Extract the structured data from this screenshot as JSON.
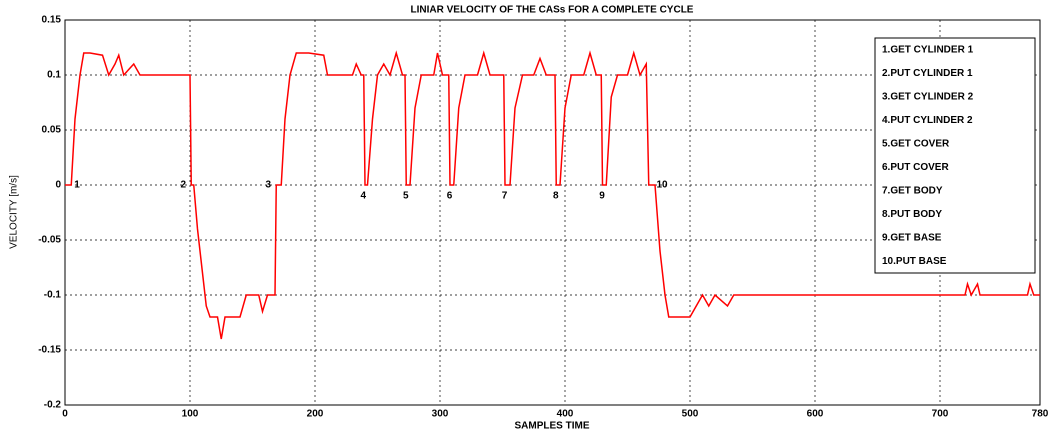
{
  "chart_data": {
    "type": "line",
    "title": "LINIAR VELOCITY OF THE CASs FOR A COMPLETE CYCLE",
    "xlabel": "SAMPLES TIME",
    "ylabel": "VELOCITY [m/s]",
    "x": [
      0,
      5,
      6,
      8,
      10,
      12,
      15,
      20,
      30,
      35,
      40,
      43,
      47,
      55,
      60,
      70,
      100,
      101,
      103,
      106,
      110,
      113,
      116,
      122,
      125,
      128,
      140,
      145,
      155,
      158,
      162,
      168,
      169,
      173,
      176,
      180,
      185,
      195,
      207,
      210,
      230,
      233,
      237,
      239,
      240,
      242,
      246,
      250,
      255,
      260,
      265,
      270,
      272,
      273,
      276,
      280,
      285,
      295,
      298,
      302,
      307,
      308,
      311,
      315,
      320,
      330,
      335,
      340,
      351,
      352,
      356,
      360,
      366,
      375,
      380,
      385,
      392,
      393,
      396,
      400,
      405,
      415,
      420,
      425,
      429,
      430,
      433,
      437,
      442,
      450,
      455,
      460,
      465,
      467,
      472,
      476,
      480,
      483,
      500,
      505,
      510,
      515,
      520,
      530,
      535,
      550,
      700,
      720,
      722,
      725,
      730,
      732,
      770,
      772,
      775,
      780
    ],
    "series": [
      {
        "name": "velocity",
        "color": "#ff0000",
        "values": [
          0,
          0,
          0.02,
          0.06,
          0.08,
          0.1,
          0.12,
          0.12,
          0.118,
          0.1,
          0.11,
          0.118,
          0.1,
          0.11,
          0.1,
          0.1,
          0.1,
          0,
          0,
          -0.04,
          -0.08,
          -0.11,
          -0.12,
          -0.12,
          -0.14,
          -0.12,
          -0.12,
          -0.1,
          -0.1,
          -0.115,
          -0.1,
          -0.1,
          0,
          0,
          0.06,
          0.1,
          0.12,
          0.12,
          0.118,
          0.1,
          0.1,
          0.11,
          0.1,
          0.1,
          0,
          0,
          0.06,
          0.1,
          0.11,
          0.1,
          0.12,
          0.1,
          0.1,
          0,
          0,
          0.07,
          0.1,
          0.1,
          0.12,
          0.1,
          0.1,
          0,
          0,
          0.07,
          0.1,
          0.1,
          0.12,
          0.1,
          0.1,
          0,
          0,
          0.07,
          0.1,
          0.1,
          0.115,
          0.1,
          0.1,
          0,
          0,
          0.07,
          0.1,
          0.1,
          0.12,
          0.1,
          0.1,
          0,
          0,
          0.08,
          0.1,
          0.1,
          0.12,
          0.1,
          0.11,
          0,
          0,
          -0.06,
          -0.1,
          -0.12,
          -0.12,
          -0.11,
          -0.1,
          -0.11,
          -0.1,
          -0.11,
          -0.1,
          -0.1,
          -0.1,
          -0.1,
          -0.09,
          -0.1,
          -0.09,
          -0.1,
          -0.1,
          -0.09,
          -0.1,
          -0.1
        ]
      }
    ],
    "xlim": [
      0,
      780
    ],
    "ylim": [
      -0.2,
      0.15
    ],
    "xticks": [
      0,
      100,
      200,
      300,
      400,
      500,
      600,
      700,
      780
    ],
    "yticks": [
      -0.2,
      -0.15,
      -0.1,
      -0.05,
      0,
      0.05,
      0.1,
      0.15
    ],
    "grid": true,
    "annotations": [
      {
        "text": "1",
        "x": 8,
        "y": 0
      },
      {
        "text": "2",
        "x": 93,
        "y": 0
      },
      {
        "text": "3",
        "x": 161,
        "y": 0
      },
      {
        "text": "4",
        "x": 237,
        "y": -0.01
      },
      {
        "text": "5",
        "x": 271,
        "y": -0.01
      },
      {
        "text": "6",
        "x": 306,
        "y": -0.01
      },
      {
        "text": "7",
        "x": 350,
        "y": -0.01
      },
      {
        "text": "8",
        "x": 391,
        "y": -0.01
      },
      {
        "text": "9",
        "x": 428,
        "y": -0.01
      },
      {
        "text": "10",
        "x": 476,
        "y": 0
      }
    ],
    "legend_items": [
      "1.GET CYLINDER 1",
      "2.PUT CYLINDER 1",
      "3.GET CYLINDER 2",
      "4.PUT CYLINDER 2",
      "5.GET COVER",
      "6.PUT COVER",
      "7.GET BODY",
      "8.PUT BODY",
      "9.GET BASE",
      "10.PUT BASE"
    ],
    "legend_position": "upper right"
  }
}
